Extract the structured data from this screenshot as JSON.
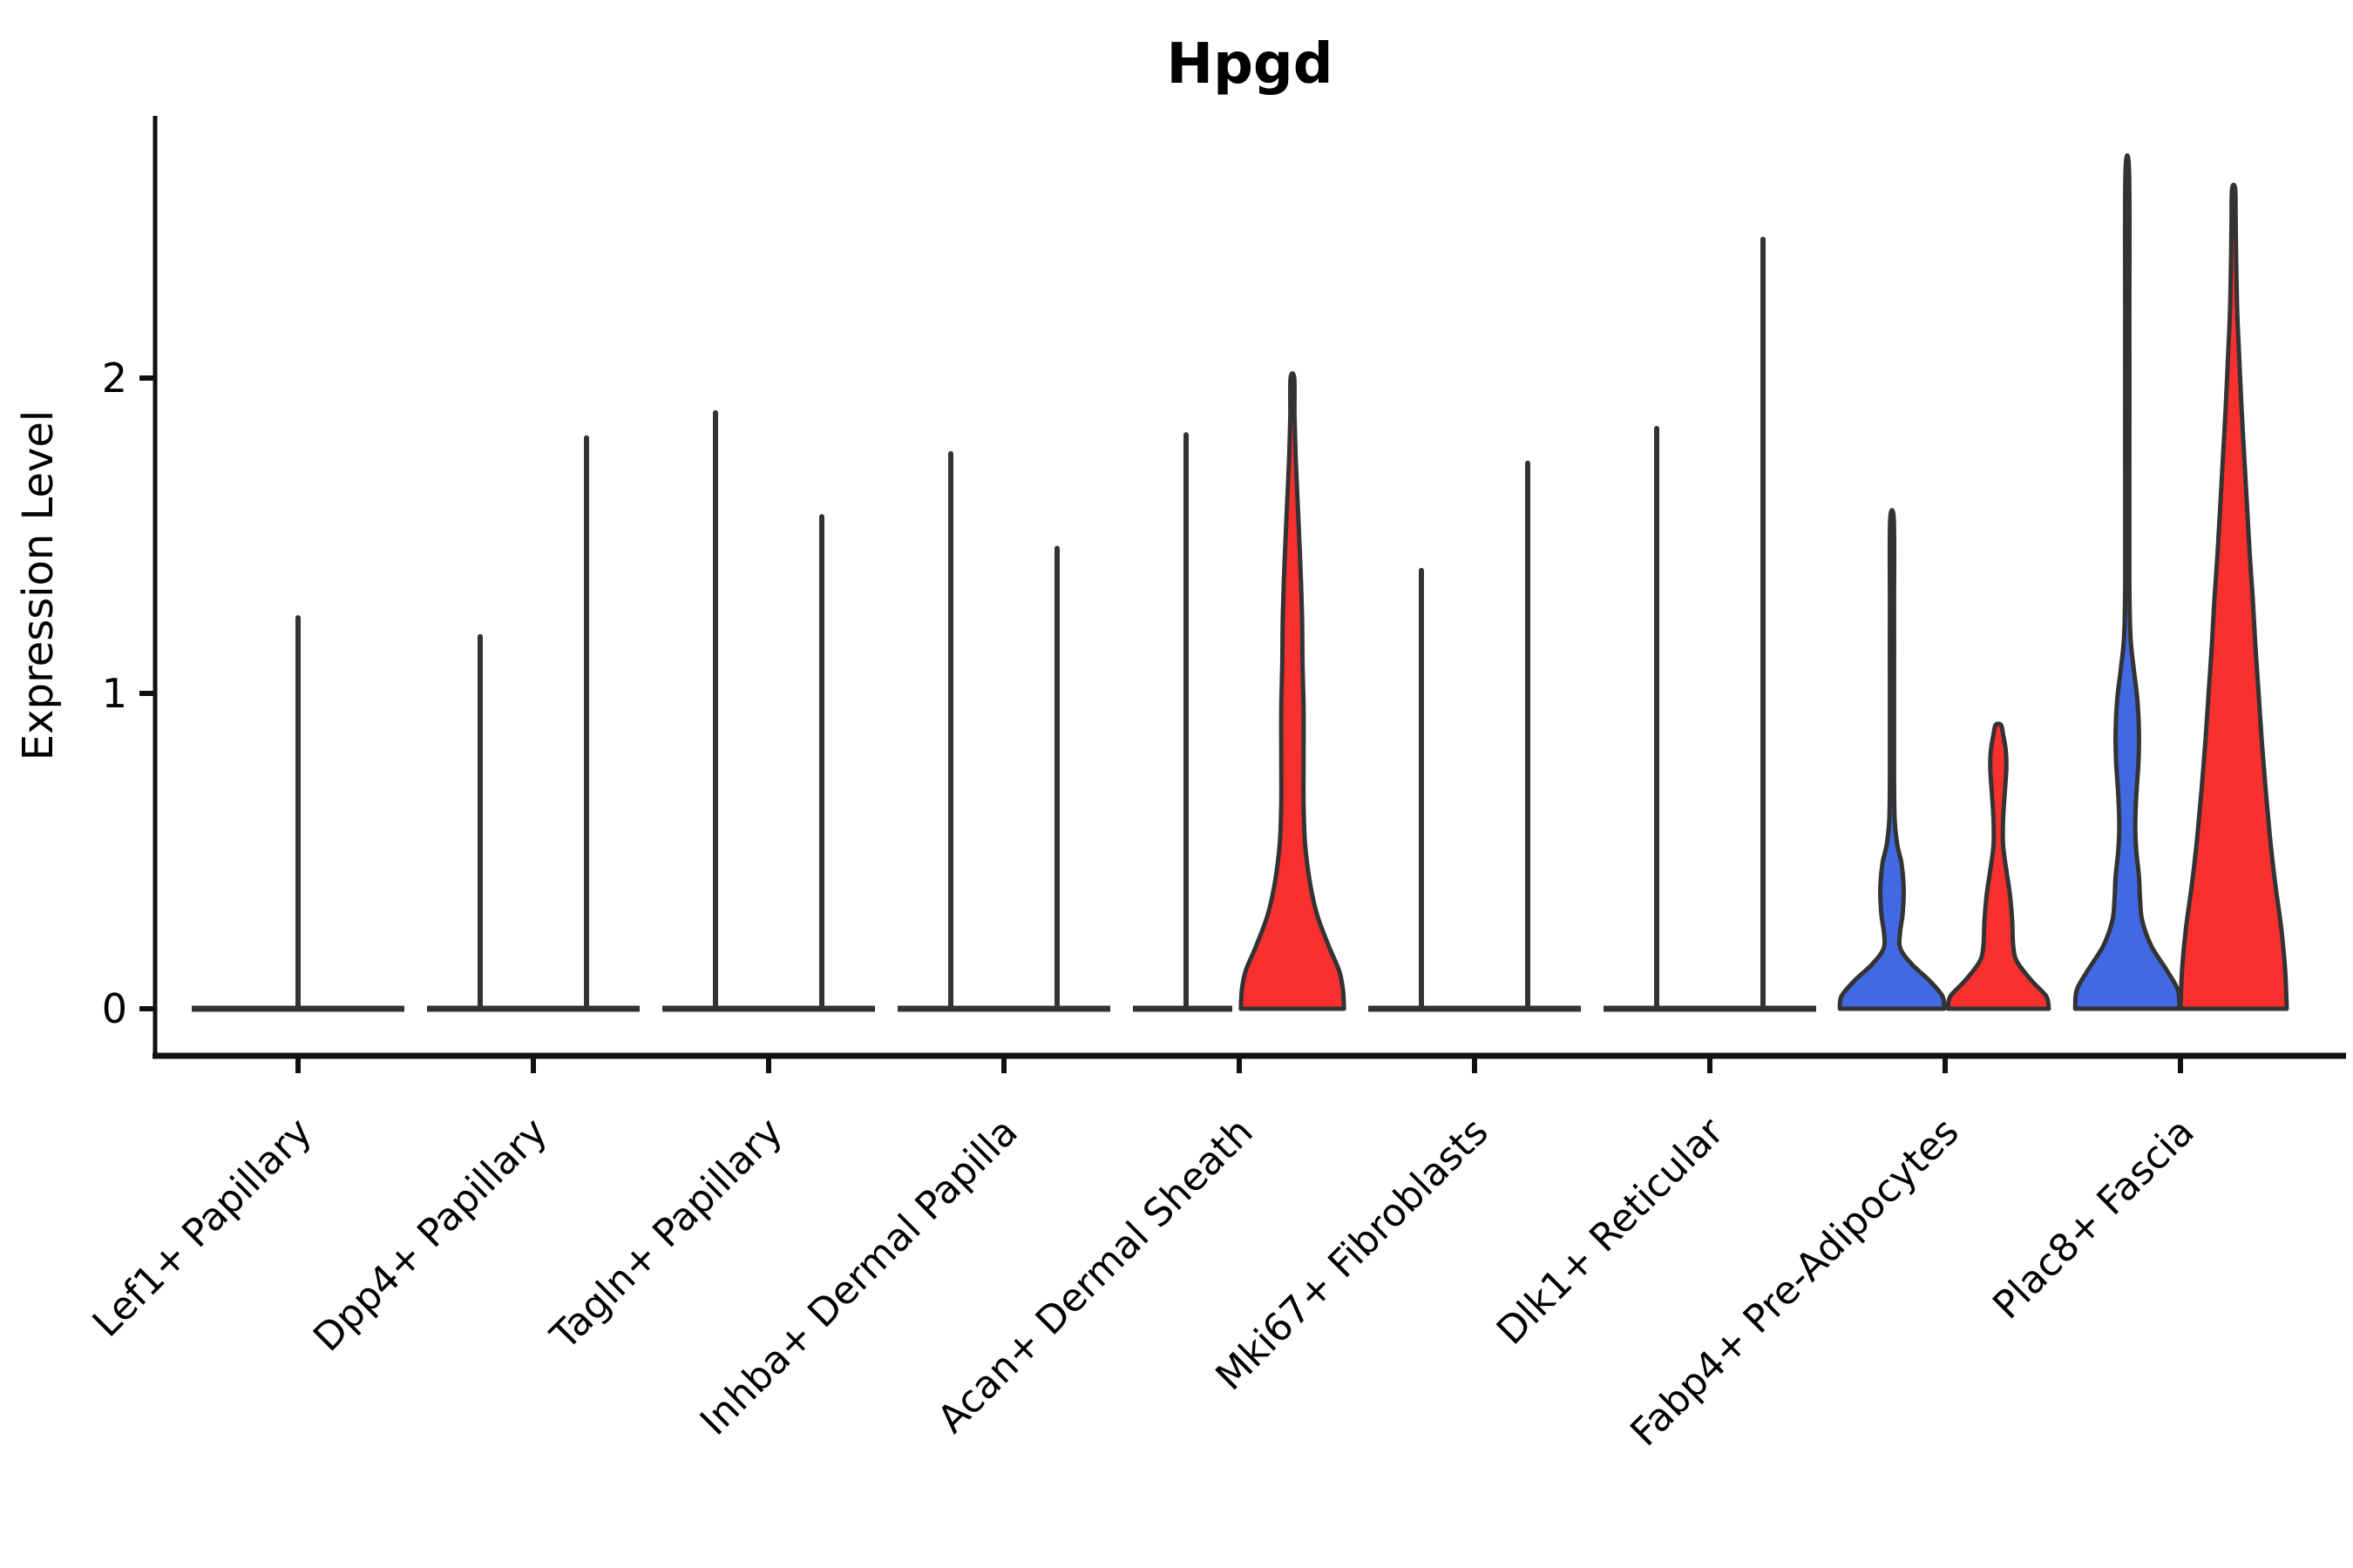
{
  "title": "Hpgd",
  "y_axis": {
    "label": "Expression Level",
    "ticks": [
      "0",
      "1",
      "2"
    ]
  },
  "colors": {
    "blue_fill": "#4169E1",
    "red_fill": "#F9302E",
    "outline": "#333333",
    "axis": "#111111",
    "background": "#ffffff"
  },
  "chart_data": {
    "type": "violin",
    "title": "Hpgd",
    "xlabel": "",
    "ylabel": "Expression Level",
    "yticks": [
      0,
      1,
      2
    ],
    "ylim": [
      -0.15,
      2.83
    ],
    "grid": false,
    "legend": "none",
    "categories": [
      "Lef1+ Papillary",
      "Dpp4+ Papillary",
      "Tagln+ Papillary",
      "Inhba+ Dermal Papilla",
      "Acan+ Dermal Sheath",
      "Mki67+ Fibroblasts",
      "Dlk1+ Reticular",
      "Fabp4+ Pre-Adipocytes",
      "Plac8+ Fascia"
    ],
    "series": [
      {
        "name": "group-left-blue",
        "color": "#4169E1",
        "max_expression": [
          1.24,
          1.18,
          1.89,
          1.76,
          1.82,
          1.39,
          1.84,
          1.55,
          2.65
        ]
      },
      {
        "name": "group-right-red",
        "color": "#F9302E",
        "max_expression": [
          null,
          1.81,
          1.56,
          1.46,
          2.0,
          1.73,
          2.44,
          0.9,
          2.6
        ]
      }
    ],
    "violins": [
      {
        "category": "Lef1+ Papillary",
        "items": [
          {
            "side": "single",
            "shape": "collapsed",
            "max": 1.24,
            "color": null
          }
        ]
      },
      {
        "category": "Dpp4+ Papillary",
        "items": [
          {
            "side": "left",
            "shape": "collapsed",
            "max": 1.18,
            "color": null
          },
          {
            "side": "right",
            "shape": "collapsed",
            "max": 1.81,
            "color": null
          }
        ]
      },
      {
        "category": "Tagln+ Papillary",
        "items": [
          {
            "side": "left",
            "shape": "collapsed",
            "max": 1.89,
            "color": null
          },
          {
            "side": "right",
            "shape": "collapsed",
            "max": 1.56,
            "color": null
          }
        ]
      },
      {
        "category": "Inhba+ Dermal Papilla",
        "items": [
          {
            "side": "left",
            "shape": "collapsed",
            "max": 1.76,
            "color": null
          },
          {
            "side": "right",
            "shape": "collapsed",
            "max": 1.46,
            "color": null
          }
        ]
      },
      {
        "category": "Acan+ Dermal Sheath",
        "items": [
          {
            "side": "left",
            "shape": "collapsed",
            "max": 1.82,
            "color": null
          },
          {
            "side": "right",
            "shape": "filled",
            "max": 2.0,
            "color": "#F9302E",
            "profile": [
              [
                0,
                0.97
              ],
              [
                0.06,
                0.95
              ],
              [
                0.12,
                0.88
              ],
              [
                0.2,
                0.68
              ],
              [
                0.3,
                0.46
              ],
              [
                0.4,
                0.33
              ],
              [
                0.52,
                0.24
              ],
              [
                0.65,
                0.21
              ],
              [
                0.8,
                0.21
              ],
              [
                0.95,
                0.21
              ],
              [
                1.1,
                0.19
              ],
              [
                1.25,
                0.18
              ],
              [
                1.45,
                0.14
              ],
              [
                1.6,
                0.1
              ],
              [
                1.75,
                0.06
              ],
              [
                1.88,
                0.04
              ],
              [
                2.0,
                0.035
              ]
            ]
          }
        ]
      },
      {
        "category": "Mki67+ Fibroblasts",
        "items": [
          {
            "side": "left",
            "shape": "collapsed",
            "max": 1.39,
            "color": null
          },
          {
            "side": "right",
            "shape": "collapsed",
            "max": 1.73,
            "color": null
          }
        ]
      },
      {
        "category": "Dlk1+ Reticular",
        "items": [
          {
            "side": "left",
            "shape": "collapsed",
            "max": 1.84,
            "color": null
          },
          {
            "side": "right",
            "shape": "collapsed",
            "max": 2.44,
            "color": null
          }
        ]
      },
      {
        "category": "Fabp4+ Pre-Adipocytes",
        "items": [
          {
            "side": "left",
            "shape": "filled",
            "max": 1.55,
            "color": "#4169E1",
            "profile": [
              [
                0,
                0.98
              ],
              [
                0.04,
                0.95
              ],
              [
                0.09,
                0.7
              ],
              [
                0.14,
                0.38
              ],
              [
                0.19,
                0.16
              ],
              [
                0.24,
                0.15
              ],
              [
                0.3,
                0.2
              ],
              [
                0.38,
                0.22
              ],
              [
                0.46,
                0.18
              ],
              [
                0.52,
                0.1
              ],
              [
                0.6,
                0.05
              ],
              [
                0.75,
                0.04
              ],
              [
                1.0,
                0.04
              ],
              [
                1.3,
                0.04
              ],
              [
                1.55,
                0.035
              ]
            ]
          },
          {
            "side": "right",
            "shape": "filled",
            "max": 0.9,
            "color": "#F9302E",
            "profile": [
              [
                0,
                0.95
              ],
              [
                0.04,
                0.9
              ],
              [
                0.09,
                0.62
              ],
              [
                0.15,
                0.35
              ],
              [
                0.2,
                0.28
              ],
              [
                0.28,
                0.26
              ],
              [
                0.36,
                0.22
              ],
              [
                0.44,
                0.15
              ],
              [
                0.52,
                0.09
              ],
              [
                0.6,
                0.09
              ],
              [
                0.68,
                0.12
              ],
              [
                0.76,
                0.15
              ],
              [
                0.82,
                0.14
              ],
              [
                0.87,
                0.09
              ],
              [
                0.9,
                0.05
              ]
            ]
          }
        ]
      },
      {
        "category": "Plac8+ Fascia",
        "items": [
          {
            "side": "left",
            "shape": "filled",
            "max": 2.65,
            "color": "#4169E1",
            "profile": [
              [
                0,
                0.98
              ],
              [
                0.06,
                0.95
              ],
              [
                0.12,
                0.75
              ],
              [
                0.2,
                0.45
              ],
              [
                0.28,
                0.28
              ],
              [
                0.35,
                0.24
              ],
              [
                0.42,
                0.22
              ],
              [
                0.5,
                0.17
              ],
              [
                0.58,
                0.15
              ],
              [
                0.68,
                0.17
              ],
              [
                0.78,
                0.21
              ],
              [
                0.88,
                0.22
              ],
              [
                0.98,
                0.19
              ],
              [
                1.08,
                0.12
              ],
              [
                1.18,
                0.06
              ],
              [
                1.35,
                0.04
              ],
              [
                1.7,
                0.04
              ],
              [
                2.2,
                0.04
              ],
              [
                2.65,
                0.035
              ]
            ]
          },
          {
            "side": "right",
            "shape": "filled",
            "max": 2.6,
            "color": "#F9302E",
            "profile": [
              [
                0,
                1.0
              ],
              [
                0.12,
                0.97
              ],
              [
                0.25,
                0.9
              ],
              [
                0.4,
                0.78
              ],
              [
                0.55,
                0.68
              ],
              [
                0.7,
                0.6
              ],
              [
                0.85,
                0.53
              ],
              [
                1.0,
                0.47
              ],
              [
                1.15,
                0.41
              ],
              [
                1.3,
                0.36
              ],
              [
                1.45,
                0.3
              ],
              [
                1.6,
                0.25
              ],
              [
                1.75,
                0.2
              ],
              [
                1.9,
                0.15
              ],
              [
                2.05,
                0.11
              ],
              [
                2.2,
                0.07
              ],
              [
                2.35,
                0.05
              ],
              [
                2.5,
                0.04
              ],
              [
                2.6,
                0.03
              ]
            ]
          }
        ]
      }
    ]
  }
}
